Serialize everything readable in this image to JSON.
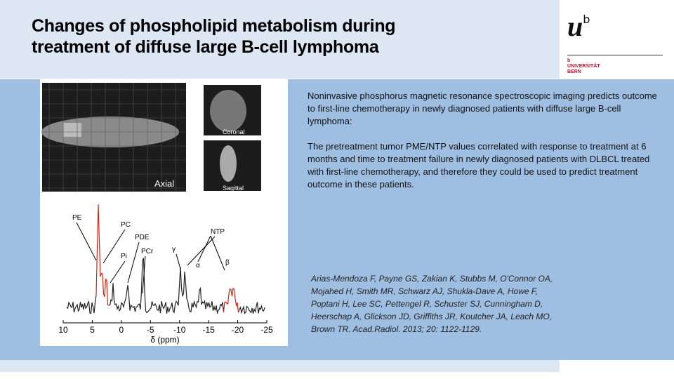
{
  "header": {
    "title_lines": [
      "Changes of phospholipid metabolism during",
      "treatment of diffuse large B-cell lymphoma"
    ]
  },
  "logo": {
    "mark": "u",
    "superscript": "b",
    "small": "b",
    "name_lines": [
      "UNIVERSITÄT",
      "BERN"
    ]
  },
  "body": {
    "paragraphs": [
      "Noninvasive phosphorus magnetic resonance spectroscopic imaging predicts outcome to first-line chemotherapy in newly diagnosed patients with diffuse large B-cell lymphoma:",
      "The pretreatment tumor PME/NTP values correlated with response to treatment at 6 months and time to treatment failure in newly diagnosed patients with DLBCL treated with first-line chemotherapy, and therefore they could be used to predict treatment outcome in these patients."
    ]
  },
  "citation": "Arias-Mendoza F, Payne GS, Zakian K, Stubbs M, O'Connor OA, Mojahed H, Smith MR, Schwarz AJ, Shukla-Dave A, Howe F, Poptani H, Lee SC, Pettengel R, Schuster SJ, Cunningham D, Heerschap A, Glickson JD, Griffiths JR, Koutcher JA, Leach MO, Brown TR. Acad.Radiol. 2013; 20: 1122-1129.",
  "figure": {
    "panels": [
      "Axial",
      "Coronal",
      "Sagittal"
    ],
    "peaks": [
      "PE",
      "PC",
      "Pi",
      "PDE",
      "PCr",
      "γ",
      "NTP",
      "α",
      "β"
    ],
    "axis": {
      "ticks": [
        10,
        5,
        0,
        -5,
        -10,
        -15,
        -20,
        -25
      ],
      "label": "δ (ppm)"
    }
  }
}
